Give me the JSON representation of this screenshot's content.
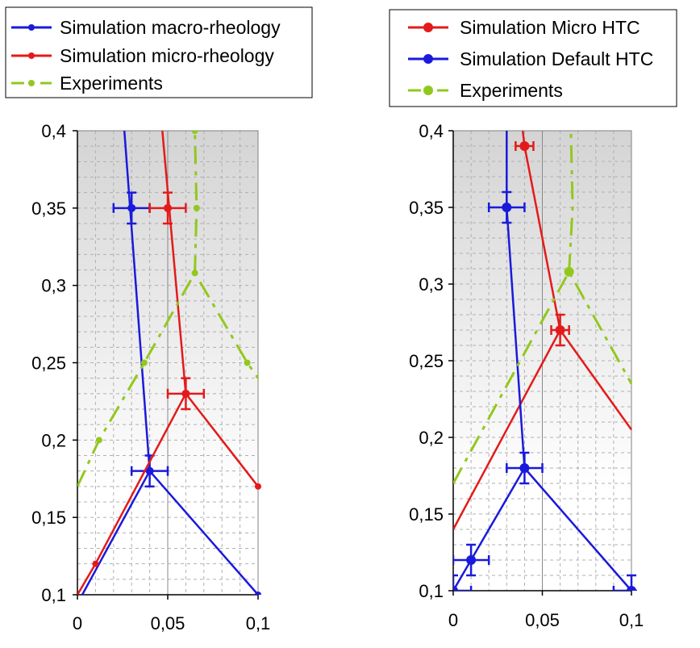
{
  "chart_data": [
    {
      "type": "line",
      "xlim": [
        0,
        0.1
      ],
      "ylim": [
        0.1,
        0.4
      ],
      "x_ticks": [
        "0",
        "0,05",
        "0,1"
      ],
      "y_ticks": [
        "0,1",
        "0,15",
        "0,2",
        "0,25",
        "0,3",
        "0,35",
        "0,4"
      ],
      "grid": true,
      "legend_position": "top",
      "series": [
        {
          "name": "Simulation macro-rheology",
          "color": "#1a1adc",
          "style": "solid",
          "points": [
            [
              0.0027,
              0.1
            ],
            [
              0.04,
              0.18
            ],
            [
              0.1,
              0.1
            ],
            null,
            [
              0.04,
              0.18
            ],
            [
              0.026,
              0.4
            ]
          ],
          "markers": [
            [
              0.04,
              0.18
            ],
            [
              0.1,
              0.1
            ]
          ],
          "error_markers": [
            [
              0.03,
              0.35,
              0.01,
              0.01
            ],
            [
              0.04,
              0.18,
              0.01,
              0.01
            ]
          ]
        },
        {
          "name": "Simulation micro-rheology",
          "color": "#e41a1a",
          "style": "solid",
          "points": [
            [
              0,
              0.1
            ],
            [
              0.01,
              0.12
            ],
            [
              0.06,
              0.23
            ],
            [
              0.1,
              0.17
            ],
            null,
            [
              0.06,
              0.23
            ],
            [
              0.047,
              0.4
            ]
          ],
          "markers": [
            [
              0.01,
              0.12
            ],
            [
              0.1,
              0.17
            ]
          ],
          "error_markers": [
            [
              0.05,
              0.35,
              0.01,
              0.01
            ],
            [
              0.06,
              0.23,
              0.01,
              0.01
            ]
          ]
        },
        {
          "name": "Experiments",
          "color": "#92c81e",
          "style": "dashdot",
          "points": [
            [
              0,
              0.17
            ],
            [
              0.012,
              0.2
            ],
            [
              0.037,
              0.25
            ],
            [
              0.065,
              0.308
            ],
            [
              0.094,
              0.25
            ],
            [
              0.1,
              0.24
            ],
            null,
            [
              0.065,
              0.308
            ],
            [
              0.066,
              0.35
            ],
            [
              0.065,
              0.4
            ]
          ],
          "markers": [
            [
              0.012,
              0.2
            ],
            [
              0.037,
              0.25
            ],
            [
              0.065,
              0.308
            ],
            [
              0.094,
              0.25
            ],
            [
              0.066,
              0.35
            ],
            [
              0.065,
              0.4
            ]
          ]
        }
      ]
    },
    {
      "type": "line",
      "xlim": [
        0,
        0.1
      ],
      "ylim": [
        0.1,
        0.4
      ],
      "x_ticks": [
        "0",
        "0,05",
        "0,1"
      ],
      "y_ticks": [
        "0,1",
        "0,15",
        "0,2",
        "0,25",
        "0,3",
        "0,35",
        "0,4"
      ],
      "grid": true,
      "legend_position": "top",
      "series": [
        {
          "name": "Simulation Micro HTC",
          "color": "#e41a1a",
          "style": "solid",
          "points": [
            [
              0,
              0.14
            ],
            [
              0.06,
              0.27
            ],
            [
              0.1,
              0.205
            ],
            null,
            [
              0.06,
              0.27
            ],
            [
              0.04,
              0.39
            ],
            [
              0.039,
              0.4
            ]
          ],
          "markers": [],
          "error_markers": [
            [
              0.04,
              0.39,
              0.005,
              0
            ],
            [
              0.06,
              0.27,
              0.005,
              0.01
            ]
          ]
        },
        {
          "name": "Simulation Default HTC",
          "color": "#1a1adc",
          "style": "solid",
          "points": [
            [
              0,
              0.1
            ],
            [
              0.01,
              0.12
            ],
            [
              0.04,
              0.18
            ],
            [
              0.1,
              0.1
            ],
            null,
            [
              0.04,
              0.18
            ],
            [
              0.03,
              0.35
            ],
            [
              0.03,
              0.4
            ]
          ],
          "markers": [],
          "error_markers": [
            [
              0,
              0.1,
              0.01,
              0.01
            ],
            [
              0.01,
              0.12,
              0.01,
              0.01
            ],
            [
              0.03,
              0.35,
              0.01,
              0.01
            ],
            [
              0.04,
              0.18,
              0.01,
              0.01
            ],
            [
              0.1,
              0.1,
              0.01,
              0.01
            ]
          ]
        },
        {
          "name": "Experiments",
          "color": "#92c81e",
          "style": "dashdot",
          "points": [
            [
              0,
              0.17
            ],
            [
              0.065,
              0.308
            ],
            [
              0.1,
              0.235
            ],
            null,
            [
              0.065,
              0.308
            ],
            [
              0.067,
              0.35
            ],
            [
              0.066,
              0.4
            ]
          ],
          "markers": [
            [
              0.065,
              0.308
            ]
          ]
        }
      ]
    }
  ]
}
